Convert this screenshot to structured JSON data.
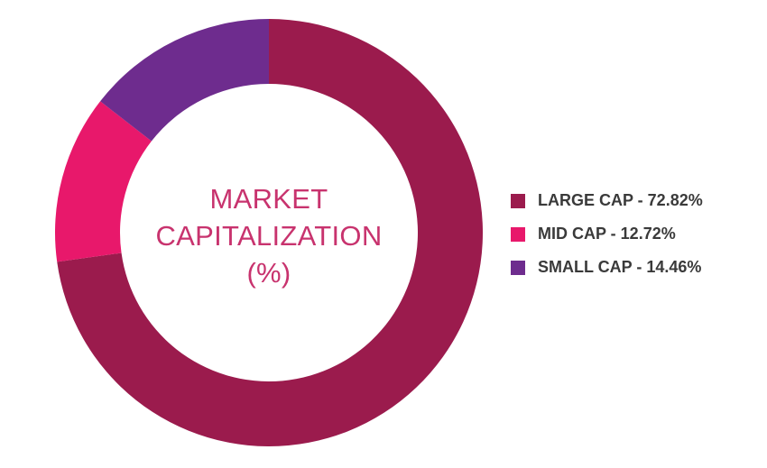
{
  "chart_data": {
    "type": "pie",
    "donut": true,
    "title_lines": [
      "MARKET",
      "CAPITALIZATION",
      "(%)"
    ],
    "start_angle_deg": 0,
    "direction": "clockwise",
    "legend_position": "right",
    "slices": [
      {
        "label": "LARGE CAP - 72.82%",
        "name": "LARGE CAP",
        "value": 72.82,
        "color": "#9b1b4d"
      },
      {
        "label": "MID CAP - 12.72%",
        "name": "MID CAP",
        "value": 12.72,
        "color": "#e8186b"
      },
      {
        "label": "SMALL CAP - 14.46%",
        "name": "SMALL CAP",
        "value": 14.46,
        "color": "#6e2c8e"
      }
    ]
  }
}
